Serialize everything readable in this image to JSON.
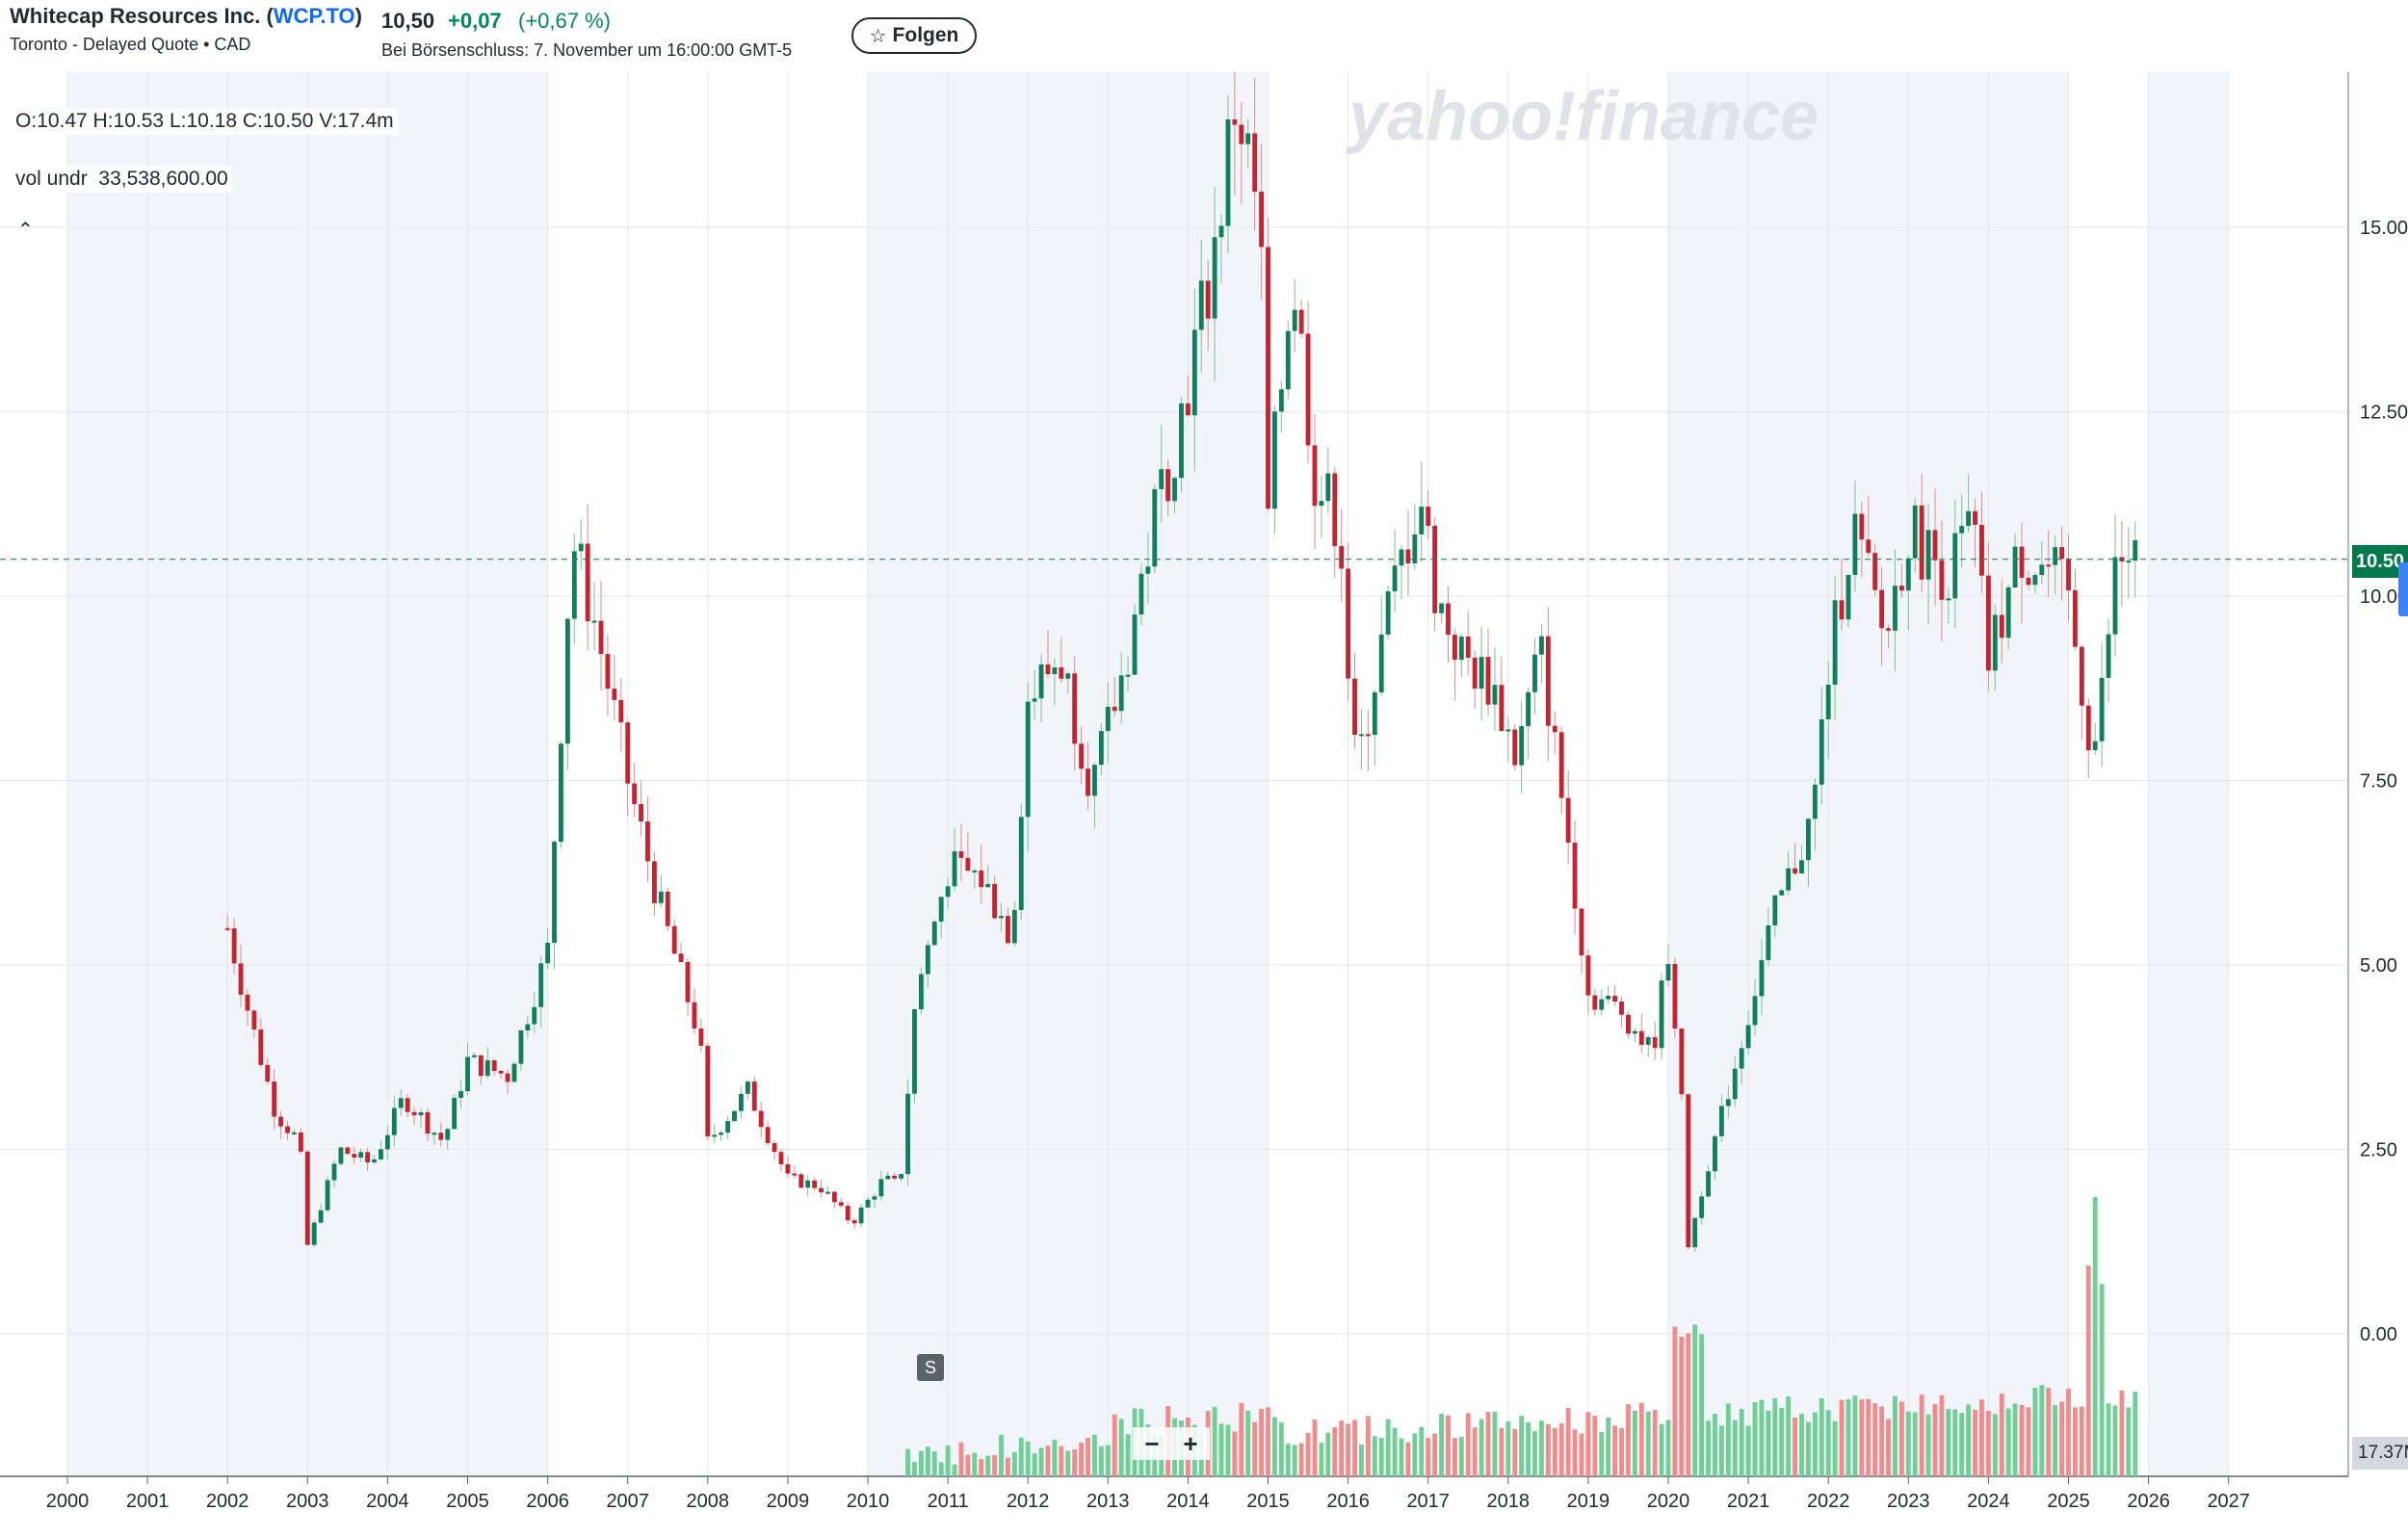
{
  "header": {
    "company_name": "Whitecap Resources Inc. (",
    "ticker": "WCP.TO",
    "company_suffix": ")",
    "exchange_info": "Toronto - Delayed Quote • CAD",
    "price": "10,50",
    "change": "+0,07",
    "change_pct": "(+0,67 %)",
    "close_time": "Bei Börsenschluss: 7. November um 16:00:00 GMT-5",
    "follow_label": "Folgen",
    "follow_icon": "star-icon"
  },
  "legend": {
    "ohlc": "O:10.47   H:10.53   L:10.18   C:10.50   V:17.4m",
    "volume_label": "vol undr",
    "volume_value": "33,538,600.00",
    "collapse_icon": "chevron-up-icon"
  },
  "watermark": "yahoo!finance",
  "event_marker": "S",
  "zoom": {
    "minus": "−",
    "plus": "+"
  },
  "current_price_label": "10.50",
  "current_volume_label": "17.37M",
  "colors": {
    "up": "#0e7f5a",
    "down": "#c8212f",
    "vol_up": "#6fcf97",
    "vol_down": "#f28b8b",
    "shade": "#f1f5f9",
    "grid": "#e3e6ea"
  },
  "chart_data": {
    "type": "candlestick",
    "interval": "monthly",
    "y_ticks": [
      "0.00",
      "2.50",
      "5.00",
      "7.50",
      "10.00",
      "12.50",
      "15.00"
    ],
    "ylim": [
      -1.9,
      17.2
    ],
    "x_ticks": [
      "2000",
      "2001",
      "2002",
      "2003",
      "2004",
      "2005",
      "2006",
      "2007",
      "2008",
      "2009",
      "2010",
      "2011",
      "2012",
      "2013",
      "2014",
      "2015",
      "2016",
      "2017",
      "2018",
      "2019",
      "2020",
      "2021",
      "2022",
      "2023",
      "2024",
      "2025",
      "2026",
      "2027"
    ],
    "shaded_ranges": [
      [
        2000,
        2006
      ],
      [
        2010,
        2015
      ],
      [
        2020,
        2025
      ],
      [
        2026,
        2027
      ]
    ],
    "anchors": [
      {
        "t": 2002.0,
        "p": 5.5
      },
      {
        "t": 2002.3,
        "p": 4.2
      },
      {
        "t": 2002.6,
        "p": 3.0
      },
      {
        "t": 2002.9,
        "p": 2.6
      },
      {
        "t": 2003.0,
        "p": 1.2
      },
      {
        "t": 2003.4,
        "p": 2.5
      },
      {
        "t": 2003.8,
        "p": 2.3
      },
      {
        "t": 2004.2,
        "p": 3.2
      },
      {
        "t": 2004.7,
        "p": 2.6
      },
      {
        "t": 2005.0,
        "p": 3.7
      },
      {
        "t": 2005.5,
        "p": 3.5
      },
      {
        "t": 2006.0,
        "p": 5.2
      },
      {
        "t": 2006.3,
        "p": 10.8
      },
      {
        "t": 2006.6,
        "p": 9.6
      },
      {
        "t": 2007.0,
        "p": 7.5
      },
      {
        "t": 2007.4,
        "p": 5.8
      },
      {
        "t": 2007.9,
        "p": 4.0
      },
      {
        "t": 2008.0,
        "p": 2.6
      },
      {
        "t": 2008.5,
        "p": 3.3
      },
      {
        "t": 2009.0,
        "p": 2.1
      },
      {
        "t": 2009.4,
        "p": 2.0
      },
      {
        "t": 2009.8,
        "p": 1.5
      },
      {
        "t": 2010.2,
        "p": 2.1
      },
      {
        "t": 2010.4,
        "p": 2.0
      },
      {
        "t": 2010.6,
        "p": 4.6
      },
      {
        "t": 2011.0,
        "p": 6.3
      },
      {
        "t": 2011.4,
        "p": 6.2
      },
      {
        "t": 2011.8,
        "p": 5.4
      },
      {
        "t": 2012.0,
        "p": 8.6
      },
      {
        "t": 2012.4,
        "p": 9.2
      },
      {
        "t": 2012.8,
        "p": 7.4
      },
      {
        "t": 2013.2,
        "p": 9.0
      },
      {
        "t": 2013.6,
        "p": 11.2
      },
      {
        "t": 2013.9,
        "p": 12.4
      },
      {
        "t": 2014.3,
        "p": 14.5
      },
      {
        "t": 2014.6,
        "p": 16.8
      },
      {
        "t": 2014.9,
        "p": 15.0
      },
      {
        "t": 2015.0,
        "p": 11.0
      },
      {
        "t": 2015.3,
        "p": 14.5
      },
      {
        "t": 2015.6,
        "p": 11.5
      },
      {
        "t": 2015.9,
        "p": 11.0
      },
      {
        "t": 2016.0,
        "p": 9.0
      },
      {
        "t": 2016.1,
        "p": 7.6
      },
      {
        "t": 2016.5,
        "p": 9.8
      },
      {
        "t": 2016.9,
        "p": 11.4
      },
      {
        "t": 2017.1,
        "p": 10.0
      },
      {
        "t": 2017.4,
        "p": 9.2
      },
      {
        "t": 2017.8,
        "p": 8.8
      },
      {
        "t": 2018.1,
        "p": 7.8
      },
      {
        "t": 2018.4,
        "p": 9.3
      },
      {
        "t": 2018.8,
        "p": 6.3
      },
      {
        "t": 2019.0,
        "p": 4.6
      },
      {
        "t": 2019.4,
        "p": 4.4
      },
      {
        "t": 2019.8,
        "p": 3.8
      },
      {
        "t": 2020.0,
        "p": 5.2
      },
      {
        "t": 2020.15,
        "p": 3.5
      },
      {
        "t": 2020.25,
        "p": 1.2
      },
      {
        "t": 2020.5,
        "p": 2.3
      },
      {
        "t": 2020.9,
        "p": 3.9
      },
      {
        "t": 2021.3,
        "p": 5.6
      },
      {
        "t": 2021.8,
        "p": 7.0
      },
      {
        "t": 2022.0,
        "p": 9.0
      },
      {
        "t": 2022.3,
        "p": 11.0
      },
      {
        "t": 2022.7,
        "p": 9.4
      },
      {
        "t": 2023.0,
        "p": 10.9
      },
      {
        "t": 2023.5,
        "p": 10.3
      },
      {
        "t": 2023.8,
        "p": 11.0
      },
      {
        "t": 2024.0,
        "p": 9.1
      },
      {
        "t": 2024.4,
        "p": 10.6
      },
      {
        "t": 2024.8,
        "p": 10.3
      },
      {
        "t": 2025.0,
        "p": 9.9
      },
      {
        "t": 2025.25,
        "p": 8.2
      },
      {
        "t": 2025.35,
        "p": 8.0
      },
      {
        "t": 2025.6,
        "p": 10.5
      },
      {
        "t": 2025.85,
        "p": 10.5
      }
    ],
    "volume_peak": {
      "t": 2025.35,
      "label": "~2.8 (scaled)"
    }
  }
}
